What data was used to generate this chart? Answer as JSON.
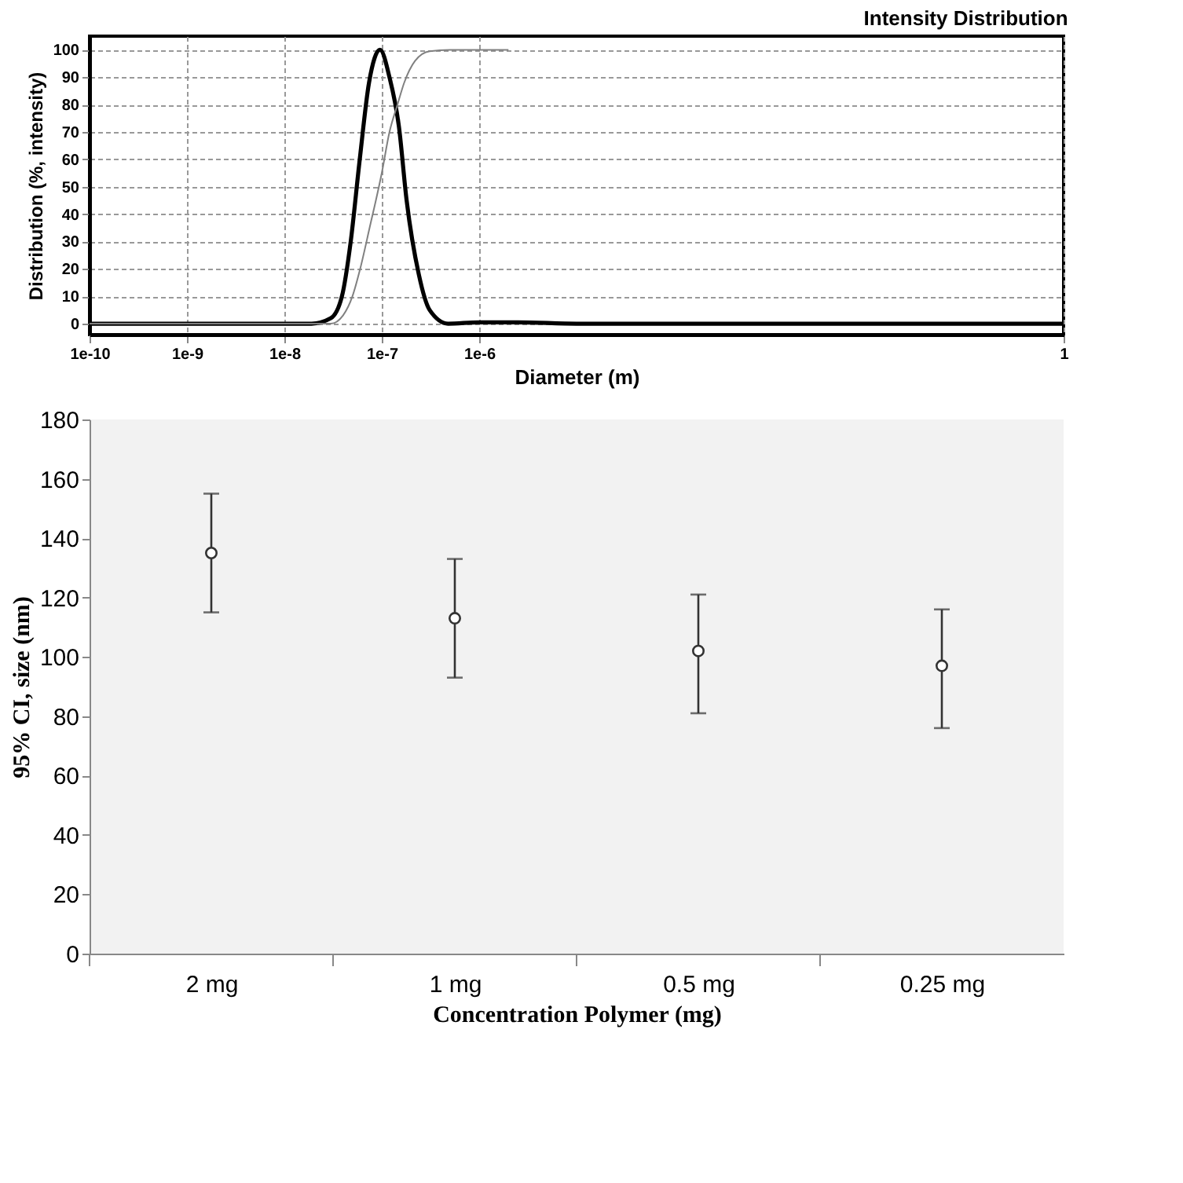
{
  "chart_data": [
    {
      "type": "line",
      "title": "Intensity Distribution",
      "xlabel": "Diameter (m)",
      "ylabel": "Distribution (%, intensity)",
      "log": "x",
      "grid": true,
      "marker": "none",
      "line_style": "solid",
      "xlim": [
        1e-10,
        1
      ],
      "xticks": [
        {
          "value": 1e-10,
          "label": "1e-10"
        },
        {
          "value": 1e-09,
          "label": "1e-9"
        },
        {
          "value": 1e-08,
          "label": "1e-8"
        },
        {
          "value": 1e-07,
          "label": "1e-7"
        },
        {
          "value": 1e-06,
          "label": "1e-6"
        },
        1
      ],
      "ylim": [
        -4,
        105
      ],
      "yticks": [
        0,
        10,
        20,
        30,
        40,
        50,
        60,
        70,
        80,
        90,
        100
      ],
      "series": [
        {
          "color": "#000000",
          "x": [
            1e-10,
            1e-09,
            1e-08,
            1.9e-08,
            3e-08,
            3.9e-08,
            4.8e-08,
            5.9e-08,
            7.4e-08,
            9.6e-08,
            1.2e-07,
            1.5e-07,
            1.8e-07,
            2.4e-07,
            3.1e-07,
            4.8e-07,
            1e-06,
            2.5e-06,
            1e-05,
            1
          ],
          "values": [
            0,
            0,
            0,
            0,
            2,
            10,
            30,
            59,
            88,
            100,
            90,
            72,
            45,
            18,
            5,
            0,
            0.5,
            0.5,
            0,
            0
          ]
        },
        {
          "color": "#808080",
          "x": [
            1e-10,
            1e-08,
            3e-08,
            4e-08,
            5e-08,
            6e-08,
            7.5e-08,
            1e-07,
            1.2e-07,
            1.45e-07,
            1.7e-07,
            2.2e-07,
            3.1e-07,
            5e-07,
            2e-06
          ],
          "values": [
            0,
            0,
            0,
            3,
            10,
            20,
            35,
            55,
            70,
            80,
            88,
            96,
            99.5,
            100,
            100
          ]
        }
      ]
    },
    {
      "type": "scatter",
      "xlabel": "Concentration Polymer (mg)",
      "ylabel": "95% CI, size (nm)",
      "grid": false,
      "marker": "circle",
      "categories": [
        "2 mg",
        "1 mg",
        "0.5 mg",
        "0.25 mg"
      ],
      "values": [
        135,
        113,
        102,
        97
      ],
      "errors": [
        [
          115,
          155
        ],
        [
          93,
          133
        ],
        [
          81,
          121
        ],
        [
          76,
          116
        ]
      ],
      "color": "#333333",
      "ylim": [
        0,
        180
      ],
      "yticks": [
        0,
        20,
        40,
        60,
        80,
        100,
        120,
        140,
        160,
        180
      ]
    }
  ]
}
